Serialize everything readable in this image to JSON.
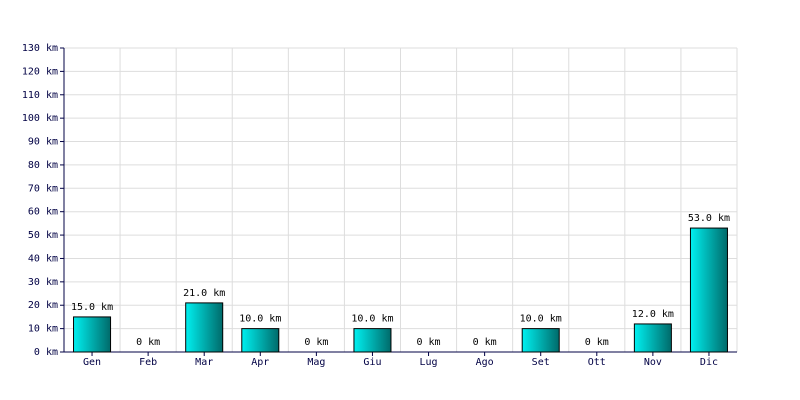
{
  "chart_data": {
    "type": "bar",
    "categories": [
      "Gen",
      "Feb",
      "Mar",
      "Apr",
      "Mag",
      "Giu",
      "Lug",
      "Ago",
      "Set",
      "Ott",
      "Nov",
      "Dic"
    ],
    "values": [
      15,
      0,
      21,
      10,
      0,
      10,
      0,
      0,
      10,
      0,
      12,
      53
    ],
    "value_labels": [
      "15.0 km",
      "0 km",
      "21.0 km",
      "10.0 km",
      "0 km",
      "10.0 km",
      "0 km",
      "0 km",
      "10.0 km",
      "0 km",
      "12.0 km",
      "53.0 km"
    ],
    "gradient": [
      "#00f0f0",
      "#006a6a"
    ],
    "ylim": [
      0,
      130
    ],
    "yticks": [
      {
        "value": 0,
        "label": "0 km"
      },
      {
        "value": 10,
        "label": "10 km"
      },
      {
        "value": 20,
        "label": "20 km"
      },
      {
        "value": 30,
        "label": "30 km"
      },
      {
        "value": 40,
        "label": "40 km"
      },
      {
        "value": 50,
        "label": "50 km"
      },
      {
        "value": 60,
        "label": "60 km"
      },
      {
        "value": 70,
        "label": "70 km"
      },
      {
        "value": 80,
        "label": "80 km"
      },
      {
        "value": 90,
        "label": "90 km"
      },
      {
        "value": 100,
        "label": "100 km"
      },
      {
        "value": 110,
        "label": "110 km"
      },
      {
        "value": 120,
        "label": "120 km"
      },
      {
        "value": 130,
        "label": "130 km"
      }
    ],
    "grid": true
  }
}
